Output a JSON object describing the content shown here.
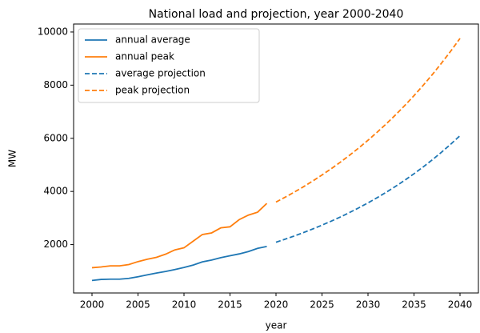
{
  "chart_data": {
    "type": "line",
    "title": "National load and projection, year 2000-2040",
    "x_label": "year",
    "y_label": "MW",
    "xlim": [
      1998,
      2042
    ],
    "xticks": [
      2000,
      2005,
      2010,
      2015,
      2020,
      2025,
      2030,
      2035,
      2040
    ],
    "ylim": [
      180,
      10300
    ],
    "yticks": [
      2000,
      4000,
      6000,
      8000,
      10000
    ],
    "legend": "upper left",
    "grid": false,
    "series": [
      {
        "name": "annual average",
        "color": "#1f77b4",
        "linestyle": "solid",
        "x": [
          2000,
          2001,
          2002,
          2003,
          2004,
          2005,
          2006,
          2007,
          2008,
          2009,
          2010,
          2011,
          2012,
          2013,
          2014,
          2015,
          2016,
          2017,
          2018,
          2019
        ],
        "values": [
          650,
          690,
          700,
          700,
          730,
          790,
          860,
          930,
          990,
          1060,
          1140,
          1230,
          1350,
          1420,
          1510,
          1580,
          1650,
          1740,
          1860,
          1930
        ]
      },
      {
        "name": "annual peak",
        "color": "#ff7f0e",
        "linestyle": "solid",
        "x": [
          2000,
          2001,
          2002,
          2003,
          2004,
          2005,
          2006,
          2007,
          2008,
          2009,
          2010,
          2011,
          2012,
          2013,
          2014,
          2015,
          2016,
          2017,
          2018,
          2019
        ],
        "values": [
          1130,
          1160,
          1200,
          1200,
          1250,
          1360,
          1450,
          1520,
          1640,
          1800,
          1880,
          2130,
          2380,
          2440,
          2630,
          2670,
          2940,
          3110,
          3220,
          3550
        ]
      },
      {
        "name": "average projection",
        "color": "#1f77b4",
        "linestyle": "dashed",
        "x": [
          2020,
          2021,
          2022,
          2023,
          2024,
          2025,
          2026,
          2027,
          2028,
          2029,
          2030,
          2031,
          2032,
          2033,
          2034,
          2035,
          2036,
          2037,
          2038,
          2039,
          2040
        ],
        "values": [
          2090,
          2205,
          2326,
          2454,
          2589,
          2732,
          2882,
          3040,
          3208,
          3384,
          3570,
          3767,
          3974,
          4192,
          4423,
          4666,
          4923,
          5194,
          5479,
          5781,
          6099
        ]
      },
      {
        "name": "peak projection",
        "color": "#ff7f0e",
        "linestyle": "dashed",
        "x": [
          2020,
          2021,
          2022,
          2023,
          2024,
          2025,
          2026,
          2027,
          2028,
          2029,
          2030,
          2031,
          2032,
          2033,
          2034,
          2035,
          2036,
          2037,
          2038,
          2039,
          2040
        ],
        "values": [
          3600,
          3784,
          3977,
          4180,
          4394,
          4619,
          4855,
          5103,
          5364,
          5638,
          5927,
          6230,
          6548,
          6883,
          7235,
          7605,
          7994,
          8402,
          8832,
          9283,
          9758
        ]
      }
    ]
  }
}
